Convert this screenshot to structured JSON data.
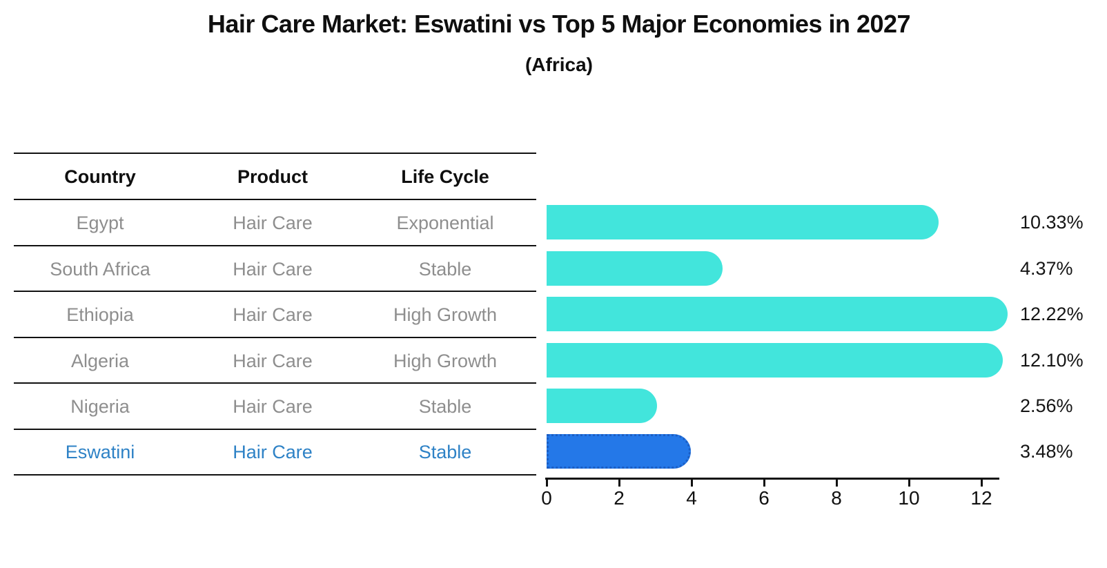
{
  "title": "Hair Care Market: Eswatini vs Top 5 Major Economies in 2027",
  "subtitle": "(Africa)",
  "colors": {
    "bar_cyan": "#42E5DC",
    "bar_blue": "#2478E8",
    "bar_blue_border": "#1B5EC4",
    "highlight_text": "#2E82C6",
    "table_text": "#8E8E8E",
    "heading_text": "#0F0F0F"
  },
  "table": {
    "headers": [
      "Country",
      "Product",
      "Life Cycle"
    ],
    "rows": [
      {
        "country": "Egypt",
        "product": "Hair Care",
        "life_cycle": "Exponential"
      },
      {
        "country": "South Africa",
        "product": "Hair Care",
        "life_cycle": "Stable"
      },
      {
        "country": "Ethiopia",
        "product": "Hair Care",
        "life_cycle": "High Growth"
      },
      {
        "country": "Algeria",
        "product": "Hair Care",
        "life_cycle": "High Growth"
      },
      {
        "country": "Nigeria",
        "product": "Hair Care",
        "life_cycle": "Stable"
      },
      {
        "country": "Eswatini",
        "product": "Hair Care",
        "life_cycle": "Stable"
      }
    ],
    "highlight_row": "Eswatini"
  },
  "chart_data": {
    "type": "bar",
    "orientation": "horizontal",
    "title": "Hair Care Market: Eswatini vs Top 5 Major Economies in 2027",
    "subtitle": "(Africa)",
    "categories": [
      "Egypt",
      "South Africa",
      "Ethiopia",
      "Algeria",
      "Nigeria",
      "Eswatini"
    ],
    "values": [
      10.33,
      4.37,
      12.22,
      12.1,
      2.56,
      3.48
    ],
    "labels": [
      "10.33%",
      "4.37%",
      "12.22%",
      "12.10%",
      "2.56%",
      "3.48%"
    ],
    "unit": "percent",
    "highlight_index": 5,
    "xlim": [
      0,
      12.5
    ],
    "xticks": [
      0,
      2,
      4,
      6,
      8,
      10,
      12
    ],
    "grid": false,
    "legend": false
  }
}
